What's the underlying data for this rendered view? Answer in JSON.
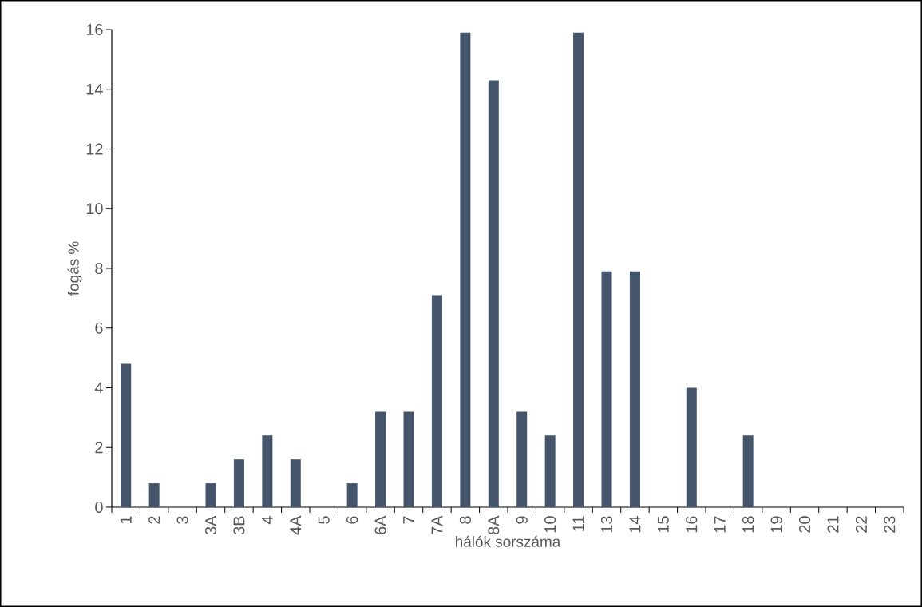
{
  "chart_data": {
    "type": "bar",
    "xlabel": "hálók sorszáma",
    "ylabel": "fogás %",
    "categories": [
      "1",
      "2",
      "3",
      "3A",
      "3B",
      "4",
      "4A",
      "5",
      "6",
      "6A",
      "7",
      "7A",
      "8",
      "8A",
      "9",
      "10",
      "11",
      "13",
      "14",
      "15",
      "16",
      "17",
      "18",
      "19",
      "20",
      "21",
      "22",
      "23"
    ],
    "values": [
      4.8,
      0.8,
      0,
      0.8,
      1.6,
      2.4,
      1.6,
      0,
      0.8,
      3.2,
      3.2,
      7.1,
      15.9,
      14.3,
      3.2,
      2.4,
      15.9,
      7.9,
      7.9,
      0,
      4.0,
      0,
      2.4,
      0,
      0,
      0,
      0,
      0
    ],
    "color": "#44546a",
    "ylim": [
      0,
      16
    ],
    "yticks": [
      0,
      2,
      4,
      6,
      8,
      10,
      12,
      14,
      16
    ],
    "grid": false
  }
}
